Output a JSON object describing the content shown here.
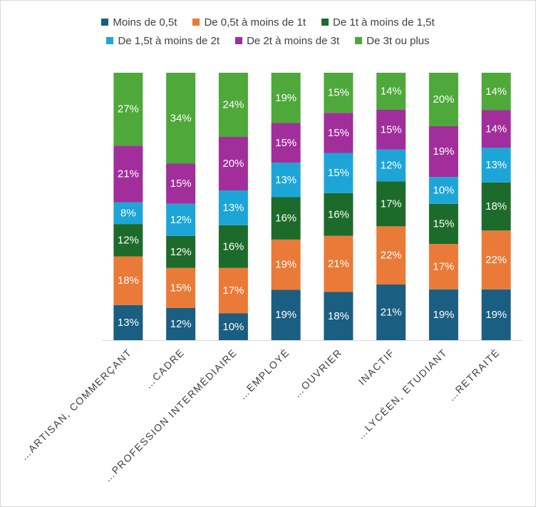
{
  "chart_data": {
    "type": "bar",
    "stacked": true,
    "percent": true,
    "categories": [
      "…ARTISAN, COMMERÇANT",
      "…CADRE",
      "…PROFESSION INTERMÉDIAIRE",
      "…EMPLOYÉ",
      "…OUVRIER",
      "INACTIF",
      "…LYCÉEN, ETUDIANT",
      "…RETRAITÉ"
    ],
    "series": [
      {
        "name": "Moins de 0,5t",
        "color": "#1a5e82",
        "values": [
          13,
          12,
          10,
          19,
          18,
          21,
          19,
          19
        ]
      },
      {
        "name": "De 0,5t à moins de 1t",
        "color": "#ea7a37",
        "values": [
          18,
          15,
          17,
          19,
          21,
          22,
          17,
          22
        ]
      },
      {
        "name": "De 1t à moins de 1,5t",
        "color": "#1d6b2a",
        "values": [
          12,
          12,
          16,
          16,
          16,
          17,
          15,
          18
        ]
      },
      {
        "name": "De 1,5t à moins de 2t",
        "color": "#1da5d8",
        "values": [
          8,
          12,
          13,
          13,
          15,
          12,
          10,
          13
        ]
      },
      {
        "name": "De 2t à moins de 3t",
        "color": "#a12e9a",
        "values": [
          21,
          15,
          20,
          15,
          15,
          15,
          19,
          14
        ]
      },
      {
        "name": "De 3t ou plus",
        "color": "#4ea83a",
        "values": [
          27,
          34,
          24,
          19,
          15,
          14,
          20,
          14
        ]
      }
    ],
    "value_suffix": "%",
    "legend_position": "top",
    "grid": false
  }
}
